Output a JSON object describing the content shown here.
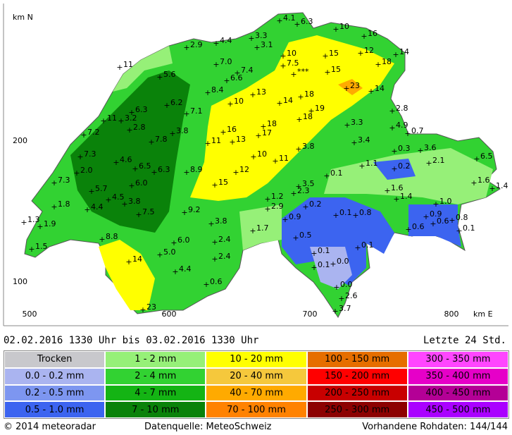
{
  "map": {
    "y_title": "km N",
    "x_title": "km E",
    "yticks": [
      "200",
      "100"
    ],
    "xticks": [
      "500",
      "600",
      "700",
      "800"
    ],
    "stations": [
      "4.1",
      "6.3",
      "10",
      "16",
      "3.3",
      "4.4",
      "2.9",
      "3.1",
      "12",
      "14",
      "15",
      "10",
      "7.5",
      "18",
      "7.0",
      "7.4",
      "***",
      "15",
      "11",
      "5.6",
      "6.6",
      "23",
      "14",
      "8.4",
      "13",
      "14",
      "18",
      "6.2",
      "10",
      "19",
      "7.1",
      "6.3",
      "11",
      "3.2",
      "18",
      "2.8",
      "2.8",
      "3.3",
      "16",
      "18",
      "17",
      "4.9",
      "0.7",
      "3.8",
      "7.2",
      "11",
      "7.8",
      "13",
      "3.4",
      "3.8",
      "0.3",
      "3.6",
      "6.5",
      "10",
      "11",
      "2.1",
      "7.3",
      "4.6",
      "6.5",
      "6.3",
      "8.9",
      "1.1",
      "0.2",
      "0.1",
      "12",
      "2.0",
      "6.0",
      "7.3",
      "15",
      "1.6",
      "1.4",
      "5.7",
      "1.6",
      "3.5",
      "2.3",
      "1.4",
      "4.5",
      "1.2",
      "1.0",
      "3.8",
      "1.8",
      "4.4",
      "0.2",
      "7.5",
      "9.2",
      "2.9",
      "0.1",
      "0.8",
      "0.9",
      "0.8",
      "0.6",
      "1.3",
      "1.9",
      "3.8",
      "0.9",
      "1.7",
      "0.1",
      "0.6",
      "8.8",
      "6.0",
      "2.4",
      "0.5",
      "0.1",
      "0.1",
      "1.5",
      "5.0",
      "14",
      "2.4",
      "0.0",
      "0.1",
      "4.4",
      "0.6",
      "0.0",
      "2.6",
      "23",
      "3.7"
    ]
  },
  "period": {
    "text": "02.02.2016 1330 Uhr  bis  03.02.2016 1330 Uhr",
    "range": "Letzte 24 Std."
  },
  "legend": [
    {
      "label": "Trocken",
      "color": "#c8c8cc"
    },
    {
      "label": "0.0 - 0.2 mm",
      "color": "#aab4f0"
    },
    {
      "label": "0.2 - 0.5 mm",
      "color": "#7d96f0"
    },
    {
      "label": "0.5 - 1.0 mm",
      "color": "#3c64f0"
    },
    {
      "label": "1 - 2 mm",
      "color": "#96f078"
    },
    {
      "label": "2 - 4 mm",
      "color": "#32d232"
    },
    {
      "label": "4 - 7 mm",
      "color": "#14b414"
    },
    {
      "label": "7 - 10 mm",
      "color": "#0a820a"
    },
    {
      "label": "10 - 20 mm",
      "color": "#ffff00"
    },
    {
      "label": "20 - 40 mm",
      "color": "#f5c83c"
    },
    {
      "label": "40 - 70 mm",
      "color": "#ffaa00"
    },
    {
      "label": "70 - 100 mm",
      "color": "#ff8200"
    },
    {
      "label": "100 - 150 mm",
      "color": "#e66e00"
    },
    {
      "label": "150 - 200 mm",
      "color": "#ff0000"
    },
    {
      "label": "200 - 250 mm",
      "color": "#c80000"
    },
    {
      "label": "250 - 300 mm",
      "color": "#8c0000"
    },
    {
      "label": "300 - 350 mm",
      "color": "#ff46ff"
    },
    {
      "label": "350 - 400 mm",
      "color": "#e600c8"
    },
    {
      "label": "400 - 450 mm",
      "color": "#b40096"
    },
    {
      "label": "450 - 500 mm",
      "color": "#aa00ff"
    }
  ],
  "footer": {
    "copyright": "© 2014 meteoradar",
    "source": "Datenquelle: MeteoSchweiz",
    "raw_data": "Vorhandene Rohdaten: 144/144"
  }
}
